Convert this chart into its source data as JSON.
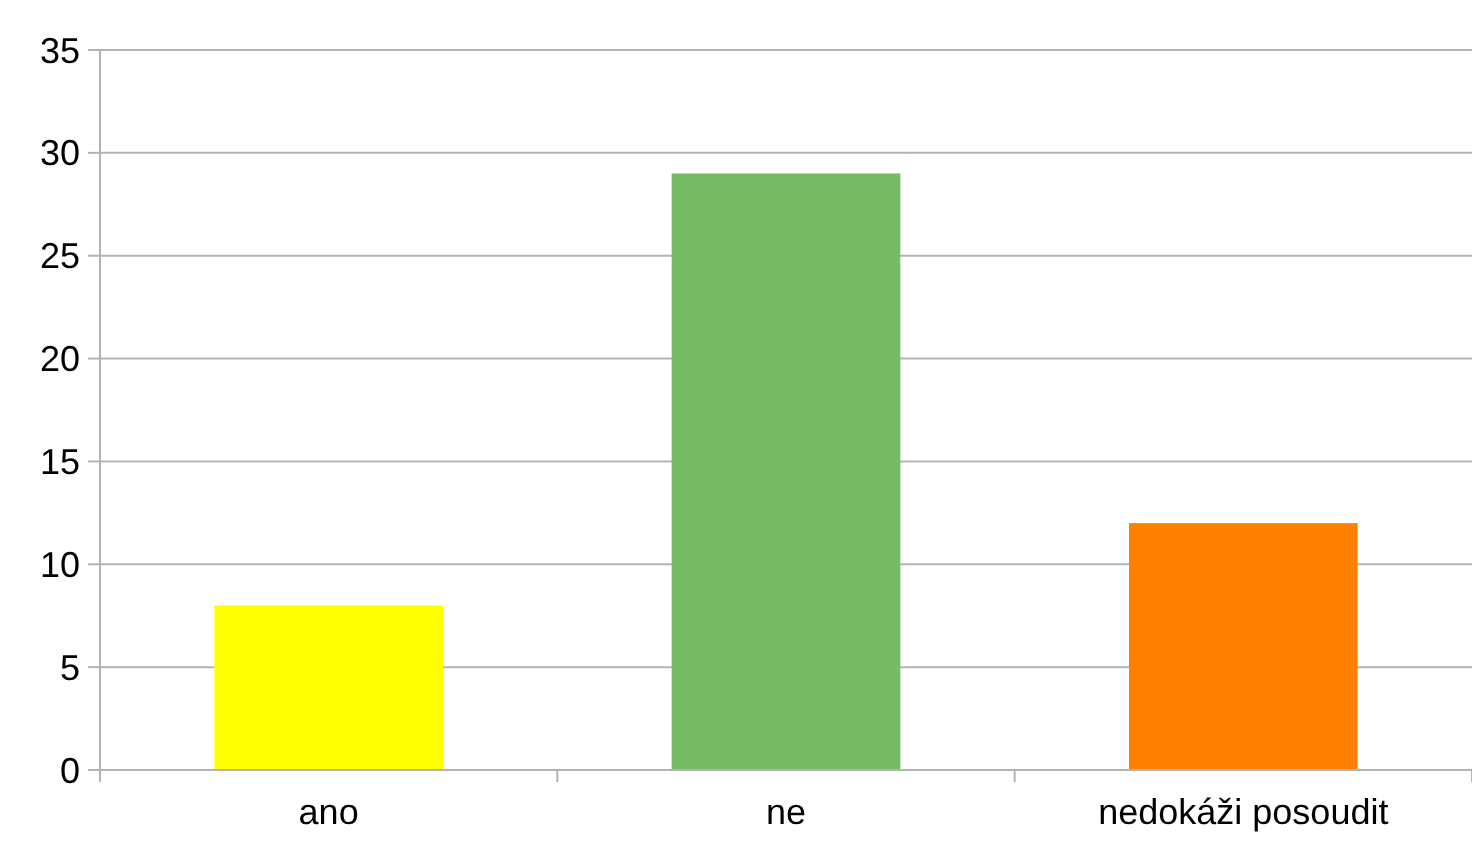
{
  "chart_data": {
    "type": "bar",
    "categories": [
      "ano",
      "ne",
      "nedokáži posoudit"
    ],
    "values": [
      8,
      29,
      12
    ],
    "colors": [
      "#ffff00",
      "#77bc65",
      "#ff8000"
    ],
    "ylim": [
      0,
      35
    ],
    "yticks": [
      0,
      5,
      10,
      15,
      20,
      25,
      30,
      35
    ],
    "grid": "y"
  }
}
